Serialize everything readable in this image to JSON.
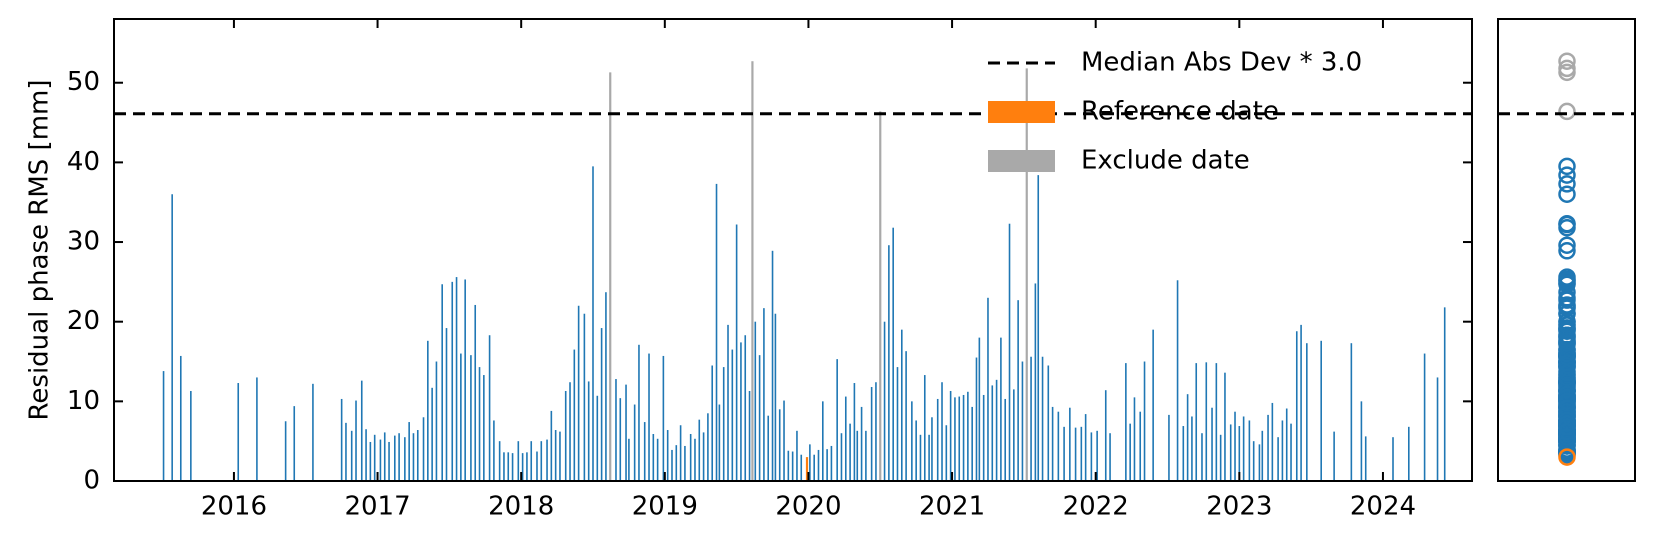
{
  "chart_data": {
    "type": "bar",
    "ylabel": "Residual phase RMS [mm]",
    "xlim": [
      2015.165,
      2024.62
    ],
    "xticks": [
      2016,
      2017,
      2018,
      2019,
      2020,
      2021,
      2022,
      2023,
      2024
    ],
    "ylim": [
      0,
      58
    ],
    "yticks": [
      0,
      10,
      20,
      30,
      40,
      50
    ],
    "legend": "upper right",
    "hline": {
      "name": "Median Abs Dev * 3.0",
      "value": 46.1,
      "color": "#000000"
    },
    "series": [
      {
        "color": "#1f77b4",
        "x": [
          2015.51,
          2015.57,
          2015.63,
          2015.7,
          2016.03,
          2016.16,
          2016.36,
          2016.42,
          2016.55,
          2016.75,
          2016.78,
          2016.82,
          2016.85,
          2016.89,
          2016.92,
          2016.95,
          2016.98,
          2017.02,
          2017.05,
          2017.08,
          2017.12,
          2017.15,
          2017.19,
          2017.22,
          2017.25,
          2017.28,
          2017.32,
          2017.35,
          2017.38,
          2017.41,
          2017.45,
          2017.48,
          2017.52,
          2017.55,
          2017.58,
          2017.61,
          2017.65,
          2017.68,
          2017.71,
          2017.74,
          2017.78,
          2017.81,
          2017.85,
          2017.88,
          2017.91,
          2017.94,
          2017.98,
          2018.01,
          2018.04,
          2018.07,
          2018.11,
          2018.14,
          2018.18,
          2018.21,
          2018.24,
          2018.27,
          2018.31,
          2018.34,
          2018.37,
          2018.4,
          2018.44,
          2018.47,
          2018.5,
          2018.53,
          2018.56,
          2018.59,
          2018.66,
          2018.69,
          2018.73,
          2018.75,
          2018.79,
          2018.82,
          2018.86,
          2018.89,
          2018.92,
          2018.95,
          2018.99,
          2019.02,
          2019.05,
          2019.08,
          2019.11,
          2019.14,
          2019.18,
          2019.21,
          2019.24,
          2019.27,
          2019.3,
          2019.33,
          2019.36,
          2019.38,
          2019.41,
          2019.44,
          2019.47,
          2019.5,
          2019.53,
          2019.56,
          2019.59,
          2019.63,
          2019.66,
          2019.69,
          2019.72,
          2019.75,
          2019.77,
          2019.8,
          2019.83,
          2019.86,
          2019.89,
          2019.92,
          2019.95,
          2020.01,
          2020.04,
          2020.07,
          2020.1,
          2020.13,
          2020.16,
          2020.2,
          2020.23,
          2020.26,
          2020.29,
          2020.32,
          2020.34,
          2020.37,
          2020.4,
          2020.44,
          2020.47,
          2020.53,
          2020.56,
          2020.59,
          2020.62,
          2020.65,
          2020.68,
          2020.72,
          2020.75,
          2020.78,
          2020.81,
          2020.84,
          2020.86,
          2020.9,
          2020.93,
          2020.96,
          2020.99,
          2021.02,
          2021.05,
          2021.08,
          2021.11,
          2021.14,
          2021.17,
          2021.19,
          2021.22,
          2021.25,
          2021.28,
          2021.31,
          2021.34,
          2021.37,
          2021.4,
          2021.43,
          2021.46,
          2021.49,
          2021.55,
          2021.58,
          2021.6,
          2021.63,
          2021.67,
          2021.7,
          2021.74,
          2021.78,
          2021.82,
          2021.86,
          2021.9,
          2021.93,
          2021.97,
          2022.01,
          2022.07,
          2022.1,
          2022.21,
          2022.24,
          2022.27,
          2022.31,
          2022.34,
          2022.4,
          2022.51,
          2022.57,
          2022.61,
          2022.64,
          2022.67,
          2022.7,
          2022.74,
          2022.77,
          2022.81,
          2022.84,
          2022.87,
          2022.9,
          2022.94,
          2022.97,
          2023.0,
          2023.03,
          2023.07,
          2023.1,
          2023.14,
          2023.16,
          2023.2,
          2023.23,
          2023.27,
          2023.3,
          2023.33,
          2023.36,
          2023.4,
          2023.43,
          2023.47,
          2023.57,
          2023.66,
          2023.78,
          2023.85,
          2023.88,
          2024.07,
          2024.18,
          2024.29,
          2024.38,
          2024.43
        ],
        "values": [
          13.8,
          36,
          15.7,
          11.3,
          12.3,
          13,
          7.5,
          9.4,
          12.2,
          10.3,
          7.3,
          6.3,
          10.1,
          12.6,
          6.5,
          4.9,
          5.8,
          5.2,
          6.1,
          4.9,
          5.7,
          6.0,
          5.5,
          7.4,
          6.0,
          6.4,
          8.0,
          17.6,
          11.7,
          15.0,
          24.7,
          19.2,
          25.0,
          25.6,
          16.0,
          25.3,
          15.8,
          22.1,
          14.3,
          13.3,
          18.3,
          7.6,
          5.0,
          3.6,
          3.6,
          3.5,
          5.0,
          3.5,
          3.6,
          5.0,
          3.7,
          5.0,
          5.2,
          8.8,
          6.4,
          6.2,
          11.3,
          12.4,
          16.5,
          22.0,
          21.0,
          12.5,
          39.5,
          10.7,
          19.2,
          23.7,
          12.8,
          10.4,
          12.1,
          5.3,
          9.6,
          17.1,
          7.4,
          16.0,
          5.9,
          5.3,
          15.7,
          6.4,
          3.9,
          4.5,
          7.0,
          4.4,
          5.9,
          5.3,
          7.7,
          6.1,
          8.5,
          14.5,
          37.3,
          9.6,
          14.3,
          19.6,
          16.5,
          32.2,
          17.4,
          18.3,
          11.3,
          20.0,
          15.8,
          21.7,
          8.2,
          28.9,
          21.0,
          9.0,
          10.1,
          3.8,
          3.7,
          6.3,
          3.3,
          4.6,
          3.3,
          3.9,
          10.0,
          4.0,
          4.4,
          15.3,
          6.0,
          10.6,
          7.2,
          12.3,
          6.3,
          9.3,
          6.3,
          11.8,
          12.4,
          20.0,
          29.6,
          31.8,
          14.3,
          19.0,
          16.3,
          10.0,
          7.6,
          5.8,
          13.3,
          5.8,
          8.0,
          10.3,
          12.4,
          7.0,
          11.3,
          10.5,
          10.6,
          10.8,
          11.2,
          9.3,
          15.5,
          18.0,
          10.8,
          23.0,
          12.0,
          12.7,
          18.0,
          10.3,
          32.3,
          11.5,
          22.7,
          15.0,
          15.6,
          24.8,
          38.4,
          15.6,
          14.5,
          9.3,
          8.7,
          6.8,
          9.2,
          6.7,
          6.8,
          8.4,
          6.1,
          6.3,
          11.4,
          6.0,
          14.8,
          7.2,
          10.5,
          8.7,
          15.0,
          19.0,
          8.3,
          25.2,
          6.9,
          10.9,
          8.1,
          14.8,
          6.0,
          14.9,
          9.2,
          14.8,
          5.8,
          13.6,
          7.1,
          8.7,
          6.9,
          8.1,
          7.6,
          5.0,
          4.6,
          6.3,
          8.3,
          9.8,
          5.5,
          7.6,
          9.1,
          7.2,
          18.8,
          19.6,
          17.3,
          17.6,
          6.2,
          17.3,
          10.0,
          5.6,
          5.5,
          6.8,
          16.0,
          13.0,
          21.8
        ]
      },
      {
        "name": "Reference date",
        "color": "#ff7f0e",
        "x": [
          2019.99
        ],
        "values": [
          3.0
        ]
      },
      {
        "name": "Exclude date",
        "color": "#a9a9a9",
        "x": [
          2018.62,
          2019.61,
          2020.5,
          2021.52
        ],
        "values": [
          51.3,
          52.7,
          46.4,
          51.8
        ]
      }
    ]
  }
}
